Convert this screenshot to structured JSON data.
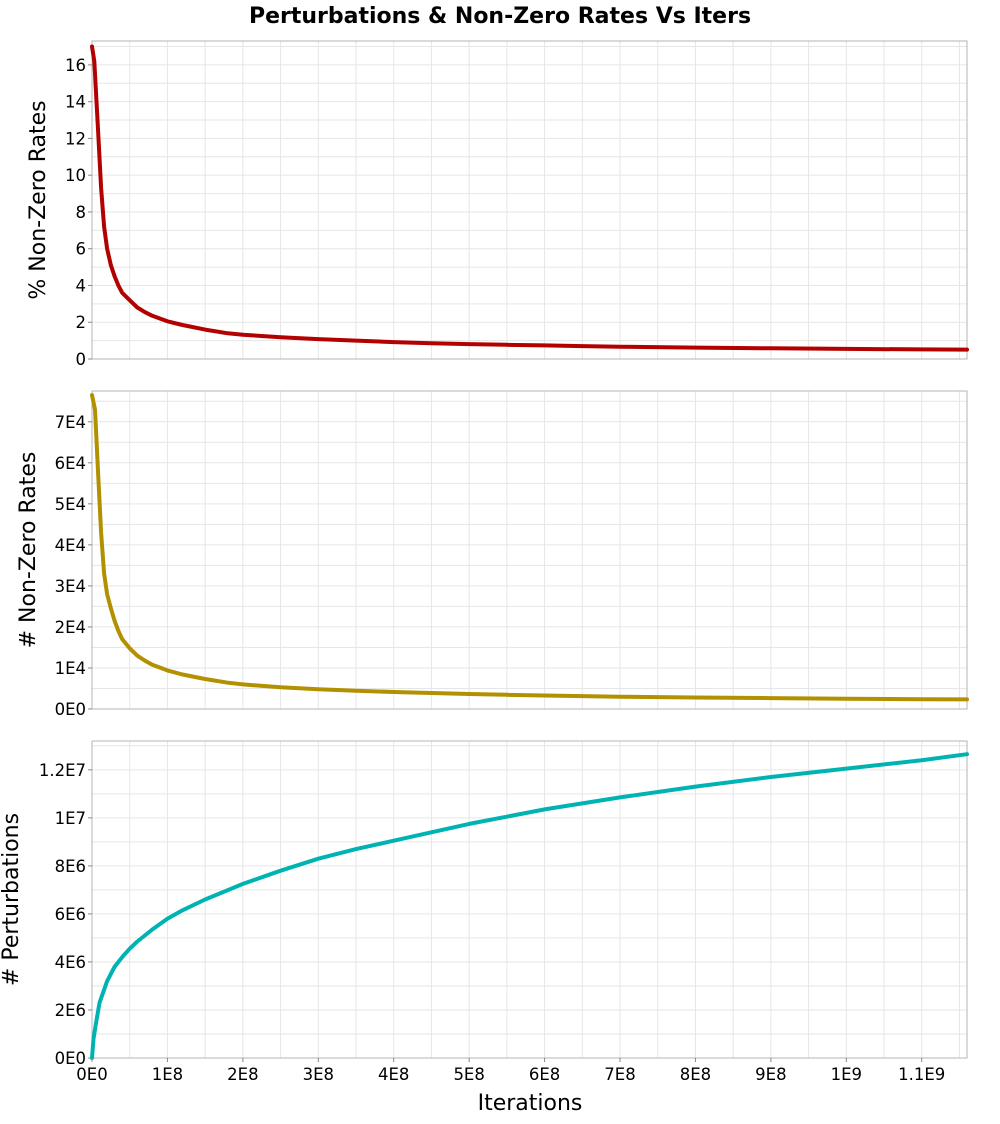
{
  "chart_data": {
    "title": "Perturbations & Non-Zero Rates Vs Iters",
    "xlabel": "Iterations",
    "x_ticks": [
      {
        "value": 0,
        "label": "0E0"
      },
      {
        "value": 100000000,
        "label": "1E8"
      },
      {
        "value": 200000000,
        "label": "2E8"
      },
      {
        "value": 300000000,
        "label": "3E8"
      },
      {
        "value": 400000000,
        "label": "4E8"
      },
      {
        "value": 500000000,
        "label": "5E8"
      },
      {
        "value": 600000000,
        "label": "6E8"
      },
      {
        "value": 700000000,
        "label": "7E8"
      },
      {
        "value": 800000000,
        "label": "8E8"
      },
      {
        "value": 900000000,
        "label": "9E8"
      },
      {
        "value": 1000000000,
        "label": "1E9"
      },
      {
        "value": 1100000000,
        "label": "1.1E9"
      }
    ],
    "xlim": [
      0,
      1160000000
    ],
    "grid": true,
    "panels": [
      {
        "type": "line",
        "ylabel": "% Non-Zero Rates",
        "ylim": [
          0,
          17.3
        ],
        "color": "#b30000",
        "y_ticks": [
          {
            "value": 0,
            "label": "0"
          },
          {
            "value": 2,
            "label": "2"
          },
          {
            "value": 4,
            "label": "4"
          },
          {
            "value": 6,
            "label": "6"
          },
          {
            "value": 8,
            "label": "8"
          },
          {
            "value": 10,
            "label": "10"
          },
          {
            "value": 12,
            "label": "12"
          },
          {
            "value": 14,
            "label": "14"
          },
          {
            "value": 16,
            "label": "16"
          }
        ],
        "x": [
          0,
          3000000,
          8000000,
          12000000,
          16000000,
          20000000,
          25000000,
          30000000,
          35000000,
          40000000,
          50000000,
          60000000,
          70000000,
          80000000,
          100000000,
          120000000,
          150000000,
          180000000,
          200000000,
          250000000,
          300000000,
          350000000,
          400000000,
          450000000,
          500000000,
          550000000,
          600000000,
          650000000,
          700000000,
          800000000,
          900000000,
          1000000000,
          1100000000,
          1160000000
        ],
        "values": [
          17.0,
          16.2,
          12.5,
          9.3,
          7.2,
          6.0,
          5.1,
          4.5,
          4.0,
          3.6,
          3.2,
          2.8,
          2.55,
          2.35,
          2.05,
          1.85,
          1.6,
          1.4,
          1.32,
          1.18,
          1.08,
          1.0,
          0.92,
          0.86,
          0.81,
          0.77,
          0.74,
          0.7,
          0.67,
          0.62,
          0.58,
          0.55,
          0.52,
          0.51
        ]
      },
      {
        "type": "line",
        "ylabel": "# Non-Zero Rates",
        "ylim": [
          0,
          77500
        ],
        "color": "#b39000",
        "y_ticks": [
          {
            "value": 0,
            "label": "0E0"
          },
          {
            "value": 10000,
            "label": "1E4"
          },
          {
            "value": 20000,
            "label": "2E4"
          },
          {
            "value": 30000,
            "label": "3E4"
          },
          {
            "value": 40000,
            "label": "4E4"
          },
          {
            "value": 50000,
            "label": "5E4"
          },
          {
            "value": 60000,
            "label": "6E4"
          },
          {
            "value": 70000,
            "label": "7E4"
          }
        ],
        "x": [
          0,
          4000000,
          8000000,
          12000000,
          16000000,
          20000000,
          25000000,
          30000000,
          35000000,
          40000000,
          50000000,
          60000000,
          70000000,
          80000000,
          100000000,
          120000000,
          150000000,
          180000000,
          200000000,
          250000000,
          300000000,
          350000000,
          400000000,
          450000000,
          500000000,
          550000000,
          600000000,
          650000000,
          700000000,
          800000000,
          900000000,
          1000000000,
          1100000000,
          1160000000
        ],
        "values": [
          76500,
          73000,
          58000,
          43000,
          33000,
          28000,
          24500,
          21500,
          19000,
          17000,
          14800,
          13000,
          11800,
          10800,
          9400,
          8400,
          7300,
          6400,
          6000,
          5300,
          4800,
          4450,
          4150,
          3900,
          3650,
          3450,
          3300,
          3150,
          3000,
          2800,
          2650,
          2500,
          2400,
          2350
        ]
      },
      {
        "type": "line",
        "ylabel": "# Perturbations",
        "ylim": [
          0,
          13200000
        ],
        "color": "#00b3b3",
        "y_ticks": [
          {
            "value": 0,
            "label": "0E0"
          },
          {
            "value": 2000000,
            "label": "2E6"
          },
          {
            "value": 4000000,
            "label": "4E6"
          },
          {
            "value": 6000000,
            "label": "6E6"
          },
          {
            "value": 8000000,
            "label": "8E6"
          },
          {
            "value": 10000000,
            "label": "1E7"
          },
          {
            "value": 12000000,
            "label": "1.2E7"
          }
        ],
        "x": [
          0,
          2000000,
          5000000,
          10000000,
          20000000,
          30000000,
          40000000,
          50000000,
          60000000,
          80000000,
          100000000,
          120000000,
          150000000,
          200000000,
          250000000,
          300000000,
          350000000,
          400000000,
          450000000,
          500000000,
          600000000,
          700000000,
          800000000,
          900000000,
          1000000000,
          1100000000,
          1160000000
        ],
        "values": [
          0,
          800000,
          1400000,
          2300000,
          3200000,
          3800000,
          4200000,
          4550000,
          4850000,
          5350000,
          5800000,
          6150000,
          6600000,
          7250000,
          7800000,
          8300000,
          8700000,
          9050000,
          9400000,
          9750000,
          10350000,
          10850000,
          11300000,
          11700000,
          12050000,
          12400000,
          12650000
        ]
      }
    ]
  }
}
